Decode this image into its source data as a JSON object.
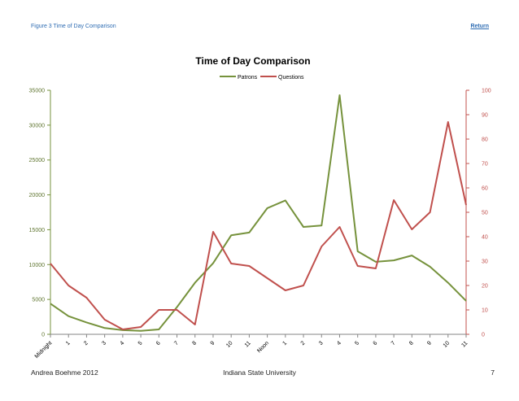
{
  "header": {
    "figure_label": "Figure 3 Time of Day Comparison",
    "return_link": "Return"
  },
  "footer": {
    "author": "Andrea Boehme 2012",
    "institution": "Indiana State University",
    "page_number": "7"
  },
  "chart_data": {
    "type": "line",
    "title": "Time of Day Comparison",
    "categories": [
      "Midnight",
      "1",
      "2",
      "3",
      "4",
      "5",
      "6",
      "7",
      "8",
      "9",
      "10",
      "11",
      "Noon",
      "1",
      "2",
      "3",
      "4",
      "5",
      "6",
      "7",
      "8",
      "9",
      "10",
      "11"
    ],
    "y_left": {
      "min": 0,
      "max": 35000,
      "ticks": [
        0,
        5000,
        10000,
        15000,
        20000,
        25000,
        30000,
        35000
      ],
      "color": "#76923c"
    },
    "y_right": {
      "min": 0,
      "max": 100,
      "ticks": [
        0,
        10,
        20,
        30,
        40,
        50,
        60,
        70,
        80,
        90,
        100
      ],
      "color": "#c0504d"
    },
    "legend_position": "top",
    "grid": false,
    "series": [
      {
        "name": "Patrons",
        "axis": "left",
        "color": "#76923c",
        "values": [
          4400,
          2600,
          1700,
          900,
          600,
          500,
          700,
          3900,
          7400,
          10200,
          14200,
          14600,
          18100,
          19200,
          15400,
          15600,
          34300,
          11900,
          10400,
          10600,
          11300,
          9700,
          7400,
          4800
        ]
      },
      {
        "name": "Questions",
        "axis": "right",
        "color": "#c0504d",
        "values": [
          29,
          20,
          15,
          6,
          2,
          3,
          10,
          10,
          4,
          42,
          29,
          28,
          23,
          18,
          20,
          36,
          44,
          28,
          27,
          55,
          43,
          50,
          87,
          53
        ]
      }
    ]
  }
}
